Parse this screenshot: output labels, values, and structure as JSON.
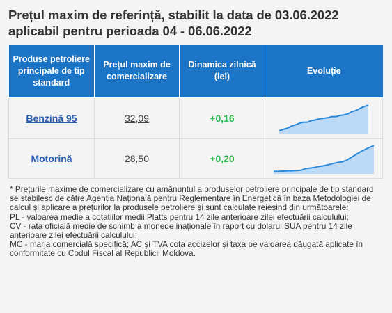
{
  "widget": {
    "title": "Prețul maxim de referință, stabilit la data de 03.06.2022 aplicabil pentru perioada 04 - 06.06.2022"
  },
  "table": {
    "headers": [
      "Produse petroliere principale de tip standard",
      "Prețul maxim de comercializare",
      "Dinamica zilnică (lei)",
      "Evoluție"
    ],
    "rows": [
      {
        "product": "Benzină 95",
        "price": "32,09",
        "change": "+0,16",
        "trend": [
          0.05,
          0.1,
          0.14,
          0.22,
          0.26,
          0.32,
          0.36,
          0.36,
          0.42,
          0.44,
          0.48,
          0.5,
          0.52,
          0.56,
          0.56,
          0.6,
          0.62,
          0.66,
          0.74,
          0.78,
          0.86,
          0.92,
          0.97
        ]
      },
      {
        "product": "Motorină",
        "price": "28,50",
        "change": "+0,20",
        "trend": [
          0.04,
          0.04,
          0.05,
          0.06,
          0.06,
          0.07,
          0.08,
          0.14,
          0.16,
          0.18,
          0.22,
          0.24,
          0.28,
          0.32,
          0.36,
          0.38,
          0.44,
          0.54,
          0.64,
          0.74,
          0.82,
          0.9,
          0.97
        ]
      }
    ]
  },
  "footnote": [
    "* Prețurile maxime de comercializare cu amănuntul a produselor petroliere principale de tip standard se stabilesc de către Agenția Națională pentru Reglementare în Energetică în baza Metodologiei de calcul și aplicare a prețurilor la produsele petroliere și sunt calculate reieșind din următoarele:",
    "PL - valoarea medie a cotațiilor medii Platts pentru 14 zile anterioare zilei efectuării calculului;",
    "CV - rata oficială medie de schimb a monede inaționale în raport cu dolarul SUA pentru 14 zile anterioare zilei efectuării calculului;",
    "MC - marja comercială specifică; AC și TVA cota accizelor și taxa pe valoarea dăugată aplicate în conformitate cu Codul Fiscal al Republicii Moldova."
  ],
  "colors": {
    "header_bg": "#1b74c5",
    "link": "#2a5db0",
    "positive": "#2db84b",
    "spark_line": "#2b88d8",
    "spark_fill": "#bcdaf5"
  }
}
